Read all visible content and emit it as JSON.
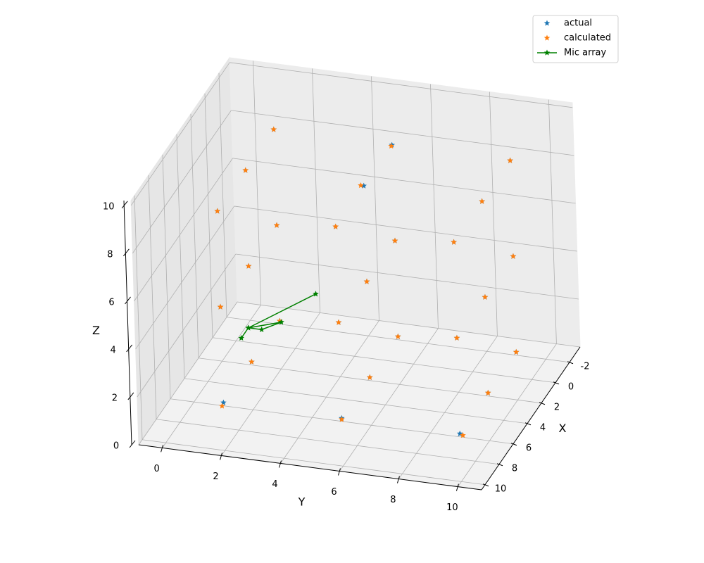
{
  "chart_data": {
    "type": "scatter3d",
    "xlabel": "X",
    "ylabel": "Y",
    "zlabel": "Z",
    "xlim": [
      -3.5,
      10.5
    ],
    "ylim": [
      -0.8,
      10.8
    ],
    "zlim": [
      0,
      10.2
    ],
    "xticks": [
      -2,
      0,
      2,
      4,
      6,
      8,
      10
    ],
    "yticks": [
      0,
      2,
      4,
      6,
      8,
      10
    ],
    "zticks": [
      0,
      2,
      4,
      6,
      8,
      10
    ],
    "grid": true,
    "legend": "upper right",
    "series": [
      {
        "name": "actual",
        "color": "#1f77b4",
        "mode": "markers",
        "x": [
          2,
          2,
          2,
          2,
          2,
          2,
          2,
          2,
          2,
          6,
          6,
          6,
          6,
          6,
          6,
          6,
          6,
          6,
          10,
          10,
          10,
          10,
          10,
          10,
          10,
          10,
          10
        ],
        "y": [
          2,
          2,
          2,
          6,
          6,
          6,
          10,
          10,
          10,
          2,
          2,
          2,
          6,
          6,
          6,
          10,
          10,
          10,
          2,
          2,
          2,
          6,
          6,
          6,
          10,
          10,
          10
        ],
        "z": [
          2,
          6,
          10,
          2,
          6,
          10,
          2,
          6,
          10,
          2,
          6,
          10,
          2,
          6,
          10,
          2,
          6,
          10,
          2,
          6,
          10,
          2,
          6,
          10,
          2,
          6,
          10
        ]
      },
      {
        "name": "calculated",
        "color": "#ff7f0e",
        "mode": "markers",
        "x": [
          2,
          2,
          2,
          2,
          2,
          2.1,
          2,
          2,
          2,
          6,
          6,
          6,
          6,
          6,
          6,
          6,
          6,
          6,
          10,
          10,
          10,
          10,
          10,
          10,
          10,
          10,
          10
        ],
        "y": [
          2,
          2,
          2,
          6,
          6,
          6,
          10,
          10,
          10,
          2,
          2,
          2,
          6,
          6,
          5.9,
          10,
          10,
          10,
          1.95,
          2,
          2,
          6,
          6,
          6,
          10.1,
          10,
          10
        ],
        "z": [
          2,
          6,
          10,
          2,
          6,
          10,
          2,
          6,
          10,
          2,
          6,
          10,
          2,
          6,
          10,
          2,
          6,
          10,
          1.85,
          6,
          10,
          1.95,
          6,
          10,
          1.95,
          6,
          10
        ]
      },
      {
        "name": "Mic array",
        "color": "#008000",
        "mode": "lines+markers",
        "x": [
          -0.3,
          -1.3,
          -1.3,
          -2.2,
          -1.3,
          -3
        ],
        "y": [
          0.1,
          0.1,
          0.55,
          1.0,
          0.1,
          2
        ],
        "z": [
          0,
          0,
          0,
          0,
          0,
          1
        ]
      }
    ]
  }
}
